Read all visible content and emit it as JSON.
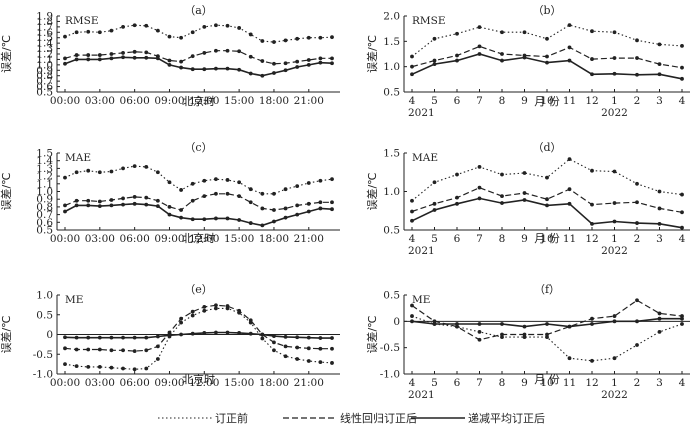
{
  "styles": {
    "before": {
      "dash": "1.5,2.5",
      "color": "#222222",
      "width": 1.1
    },
    "linear": {
      "dash": "6,3",
      "color": "#222222",
      "width": 1.2
    },
    "decay": {
      "dash": "",
      "color": "#222222",
      "width": 1.6
    }
  },
  "legend": {
    "before": "订正前",
    "linear": "线性回归订正后",
    "decay": "递减平均订正后"
  },
  "chart_data": [
    {
      "panel": "a",
      "tag": "（a）",
      "metric": "RMSE",
      "type": "line",
      "ylabel": "误差/℃",
      "xlabel": "北京时",
      "x": [
        "00:00",
        "01:00",
        "02:00",
        "03:00",
        "04:00",
        "05:00",
        "06:00",
        "07:00",
        "08:00",
        "09:00",
        "10:00",
        "11:00",
        "12:00",
        "13:00",
        "14:00",
        "15:00",
        "16:00",
        "17:00",
        "18:00",
        "19:00",
        "20:00",
        "21:00",
        "22:00",
        "23:00"
      ],
      "xticks": [
        "00:00",
        "03:00",
        "06:00",
        "09:00",
        "12:00",
        "15:00",
        "18:00",
        "21:00"
      ],
      "ylim": [
        0.5,
        1.9
      ],
      "yticks": [
        "0.5",
        "0.6",
        "0.7",
        "0.8",
        "0.9",
        "1.0",
        "1.1",
        "1.2",
        "1.3",
        "1.4",
        "1.5",
        "1.6",
        "1.7",
        "1.8",
        "1.9"
      ],
      "series": [
        {
          "key": "before",
          "name": "订正前",
          "values": [
            1.52,
            1.6,
            1.61,
            1.6,
            1.63,
            1.7,
            1.73,
            1.72,
            1.63,
            1.52,
            1.5,
            1.6,
            1.7,
            1.73,
            1.72,
            1.68,
            1.56,
            1.44,
            1.42,
            1.45,
            1.48,
            1.5,
            1.5,
            1.51
          ]
        },
        {
          "key": "linear",
          "name": "线性回归订正后",
          "values": [
            1.12,
            1.18,
            1.18,
            1.18,
            1.2,
            1.22,
            1.24,
            1.23,
            1.16,
            1.08,
            1.06,
            1.16,
            1.22,
            1.26,
            1.26,
            1.25,
            1.15,
            1.07,
            1.02,
            1.03,
            1.06,
            1.09,
            1.12,
            1.12
          ]
        },
        {
          "key": "decay",
          "name": "递减平均订正后",
          "values": [
            1.02,
            1.1,
            1.1,
            1.1,
            1.12,
            1.14,
            1.13,
            1.13,
            1.12,
            1.0,
            0.95,
            0.92,
            0.92,
            0.93,
            0.93,
            0.91,
            0.84,
            0.8,
            0.85,
            0.9,
            0.96,
            1.0,
            1.04,
            1.03
          ]
        }
      ]
    },
    {
      "panel": "b",
      "tag": "（b）",
      "metric": "RMSE",
      "type": "line",
      "ylabel": "误差/℃",
      "xlabel": "月  份",
      "x": [
        "4",
        "5",
        "6",
        "7",
        "8",
        "9",
        "10",
        "11",
        "12",
        "1",
        "2",
        "3",
        "4"
      ],
      "xticks": [
        "4",
        "5",
        "6",
        "7",
        "8",
        "9",
        "10",
        "11",
        "12",
        "1",
        "2",
        "3",
        "4"
      ],
      "years": [
        "2021",
        "2022"
      ],
      "ylim": [
        0.5,
        2.0
      ],
      "yticks": [
        "0.5",
        "1.0",
        "1.5",
        "2.0"
      ],
      "series": [
        {
          "key": "before",
          "name": "订正前",
          "values": [
            1.2,
            1.55,
            1.65,
            1.78,
            1.68,
            1.68,
            1.55,
            1.82,
            1.7,
            1.68,
            1.52,
            1.44,
            1.41
          ]
        },
        {
          "key": "linear",
          "name": "线性回归订正后",
          "values": [
            1.0,
            1.12,
            1.22,
            1.4,
            1.25,
            1.22,
            1.2,
            1.38,
            1.15,
            1.17,
            1.17,
            1.05,
            0.98
          ]
        },
        {
          "key": "decay",
          "name": "递减平均订正后",
          "values": [
            0.85,
            1.05,
            1.12,
            1.25,
            1.12,
            1.18,
            1.08,
            1.12,
            0.85,
            0.86,
            0.84,
            0.85,
            0.76
          ]
        }
      ]
    },
    {
      "panel": "c",
      "tag": "（c）",
      "metric": "MAE",
      "type": "line",
      "ylabel": "误差/℃",
      "xlabel": "北京时",
      "x": [
        "00:00",
        "01:00",
        "02:00",
        "03:00",
        "04:00",
        "05:00",
        "06:00",
        "07:00",
        "08:00",
        "09:00",
        "10:00",
        "11:00",
        "12:00",
        "13:00",
        "14:00",
        "15:00",
        "16:00",
        "17:00",
        "18:00",
        "19:00",
        "20:00",
        "21:00",
        "22:00",
        "23:00"
      ],
      "xticks": [
        "00:00",
        "03:00",
        "06:00",
        "09:00",
        "12:00",
        "15:00",
        "18:00",
        "21:00"
      ],
      "ylim": [
        0.5,
        1.5
      ],
      "yticks": [
        "0.5",
        "0.6",
        "0.7",
        "0.8",
        "0.9",
        "1.0",
        "1.1",
        "1.2",
        "1.3",
        "1.4",
        "1.5"
      ],
      "series": [
        {
          "key": "before",
          "name": "订正前",
          "values": [
            1.18,
            1.25,
            1.27,
            1.25,
            1.26,
            1.3,
            1.33,
            1.32,
            1.25,
            1.12,
            1.02,
            1.1,
            1.14,
            1.16,
            1.15,
            1.12,
            1.03,
            0.97,
            0.97,
            1.03,
            1.07,
            1.11,
            1.14,
            1.16
          ]
        },
        {
          "key": "linear",
          "name": "线性回归订正后",
          "values": [
            0.82,
            0.88,
            0.88,
            0.87,
            0.89,
            0.91,
            0.93,
            0.92,
            0.88,
            0.8,
            0.76,
            0.88,
            0.94,
            0.97,
            0.97,
            0.94,
            0.86,
            0.78,
            0.76,
            0.78,
            0.82,
            0.84,
            0.86,
            0.86
          ]
        },
        {
          "key": "decay",
          "name": "递减平均订正后",
          "values": [
            0.74,
            0.82,
            0.82,
            0.81,
            0.82,
            0.83,
            0.84,
            0.83,
            0.81,
            0.7,
            0.66,
            0.64,
            0.64,
            0.65,
            0.65,
            0.63,
            0.59,
            0.56,
            0.61,
            0.66,
            0.7,
            0.74,
            0.78,
            0.77
          ]
        }
      ]
    },
    {
      "panel": "d",
      "tag": "（d）",
      "metric": "MAE",
      "type": "line",
      "ylabel": "误差/℃",
      "xlabel": "月  份",
      "x": [
        "4",
        "5",
        "6",
        "7",
        "8",
        "9",
        "10",
        "11",
        "12",
        "1",
        "2",
        "3",
        "4"
      ],
      "xticks": [
        "4",
        "5",
        "6",
        "7",
        "8",
        "9",
        "10",
        "11",
        "12",
        "1",
        "2",
        "3",
        "4"
      ],
      "years": [
        "2021",
        "2022"
      ],
      "ylim": [
        0.5,
        1.5
      ],
      "yticks": [
        "0.5",
        "1.0",
        "1.5"
      ],
      "series": [
        {
          "key": "before",
          "name": "订正前",
          "values": [
            0.88,
            1.12,
            1.22,
            1.32,
            1.22,
            1.24,
            1.18,
            1.42,
            1.27,
            1.26,
            1.1,
            1.0,
            0.96
          ]
        },
        {
          "key": "linear",
          "name": "线性回归订正后",
          "values": [
            0.74,
            0.84,
            0.92,
            1.05,
            0.94,
            0.98,
            0.9,
            1.03,
            0.83,
            0.85,
            0.86,
            0.78,
            0.73
          ]
        },
        {
          "key": "decay",
          "name": "递减平均订正后",
          "values": [
            0.62,
            0.76,
            0.84,
            0.91,
            0.85,
            0.89,
            0.82,
            0.84,
            0.58,
            0.61,
            0.59,
            0.58,
            0.53
          ]
        }
      ]
    },
    {
      "panel": "e",
      "tag": "（e）",
      "metric": "ME",
      "type": "line",
      "ylabel": "误差/℃",
      "xlabel": "北京时",
      "x": [
        "00:00",
        "01:00",
        "02:00",
        "03:00",
        "04:00",
        "05:00",
        "06:00",
        "07:00",
        "08:00",
        "09:00",
        "10:00",
        "11:00",
        "12:00",
        "13:00",
        "14:00",
        "15:00",
        "16:00",
        "17:00",
        "18:00",
        "19:00",
        "20:00",
        "21:00",
        "22:00",
        "23:00"
      ],
      "xticks": [
        "00:00",
        "03:00",
        "06:00",
        "09:00",
        "12:00",
        "15:00",
        "18:00",
        "21:00"
      ],
      "ylim": [
        -1.0,
        1.0
      ],
      "yticks": [
        "-1.0",
        "-0.5",
        "0",
        "0.5",
        "1.0"
      ],
      "series": [
        {
          "key": "before",
          "name": "订正前",
          "values": [
            -0.75,
            -0.8,
            -0.82,
            -0.82,
            -0.84,
            -0.86,
            -0.88,
            -0.86,
            -0.62,
            -0.05,
            0.3,
            0.48,
            0.6,
            0.66,
            0.66,
            0.55,
            0.3,
            -0.1,
            -0.4,
            -0.55,
            -0.62,
            -0.67,
            -0.7,
            -0.72
          ]
        },
        {
          "key": "linear",
          "name": "线性回归订正后",
          "values": [
            -0.35,
            -0.38,
            -0.38,
            -0.38,
            -0.4,
            -0.4,
            -0.42,
            -0.4,
            -0.3,
            0.05,
            0.4,
            0.58,
            0.7,
            0.74,
            0.72,
            0.6,
            0.36,
            0.0,
            -0.2,
            -0.3,
            -0.33,
            -0.35,
            -0.36,
            -0.36
          ]
        },
        {
          "key": "decay",
          "name": "递减平均订正后",
          "values": [
            -0.07,
            -0.08,
            -0.08,
            -0.08,
            -0.08,
            -0.08,
            -0.08,
            -0.08,
            -0.05,
            -0.02,
            0.0,
            0.02,
            0.04,
            0.05,
            0.05,
            0.04,
            0.02,
            0.0,
            -0.04,
            -0.06,
            -0.07,
            -0.08,
            -0.09,
            -0.09
          ]
        }
      ]
    },
    {
      "panel": "f",
      "tag": "（f）",
      "metric": "ME",
      "type": "line",
      "ylabel": "误差/℃",
      "xlabel": "月  份",
      "x": [
        "4",
        "5",
        "6",
        "7",
        "8",
        "9",
        "10",
        "11",
        "12",
        "1",
        "2",
        "3",
        "4"
      ],
      "xticks": [
        "4",
        "5",
        "6",
        "7",
        "8",
        "9",
        "10",
        "11",
        "12",
        "1",
        "2",
        "3",
        "4"
      ],
      "years": [
        "2021",
        "2022"
      ],
      "ylim": [
        -1.0,
        0.5
      ],
      "yticks": [
        "-1.0",
        "-0.5",
        "0",
        "0.5"
      ],
      "series": [
        {
          "key": "before",
          "name": "订正前",
          "values": [
            0.1,
            -0.05,
            -0.1,
            -0.2,
            -0.3,
            -0.3,
            -0.3,
            -0.7,
            -0.75,
            -0.7,
            -0.45,
            -0.2,
            -0.05
          ]
        },
        {
          "key": "linear",
          "name": "线性回归订正后",
          "values": [
            0.3,
            0.0,
            -0.1,
            -0.35,
            -0.25,
            -0.25,
            -0.25,
            -0.1,
            0.05,
            0.1,
            0.4,
            0.15,
            0.1
          ]
        },
        {
          "key": "decay",
          "name": "递减平均订正后",
          "values": [
            0.0,
            -0.05,
            -0.05,
            -0.05,
            -0.05,
            -0.1,
            -0.05,
            -0.1,
            -0.05,
            0.0,
            0.0,
            0.05,
            0.05
          ]
        }
      ]
    }
  ]
}
